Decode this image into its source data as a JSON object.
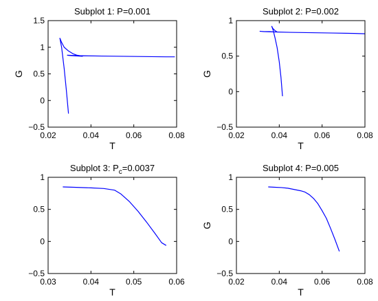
{
  "colors": {
    "line": "#0000ff",
    "axes": "#000000",
    "background": "#ffffff"
  },
  "chart_data": [
    {
      "type": "line",
      "title": {
        "text": "Subplot 1: P=0.001",
        "sub": "",
        "rest": ""
      },
      "xlabel": "T",
      "ylabel": "G",
      "xlim": [
        0.02,
        0.08
      ],
      "ylim": [
        -0.5,
        1.5
      ],
      "xticks": [
        0.02,
        0.04,
        0.06,
        0.08
      ],
      "xtick_labels": [
        "0.02",
        "0.04",
        "0.06",
        "0.08"
      ],
      "yticks": [
        -0.5,
        0,
        0.5,
        1,
        1.5
      ],
      "ytick_labels": [
        "−0.5",
        "0",
        "0.5",
        "1",
        "1.5"
      ],
      "grid": false,
      "series": [
        {
          "x": [
            0.0295,
            0.0285,
            0.0275,
            0.0263,
            0.0255,
            0.0262,
            0.0275,
            0.0295,
            0.0315,
            0.0335,
            0.035,
            0.036,
            0.034,
            0.032,
            0.03,
            0.029,
            0.032,
            0.036,
            0.045,
            0.055,
            0.065,
            0.075,
            0.079
          ],
          "y": [
            -0.24,
            0.2,
            0.6,
            1.0,
            1.17,
            1.1,
            1.0,
            0.93,
            0.88,
            0.85,
            0.84,
            0.83,
            0.835,
            0.84,
            0.845,
            0.85,
            0.845,
            0.84,
            0.835,
            0.83,
            0.825,
            0.82,
            0.82
          ]
        }
      ]
    },
    {
      "type": "line",
      "title": {
        "text": "Subplot 2: P=0.002",
        "sub": "",
        "rest": ""
      },
      "xlabel": "T",
      "ylabel": "G",
      "xlim": [
        0.02,
        0.08
      ],
      "ylim": [
        -0.5,
        1
      ],
      "xticks": [
        0.02,
        0.04,
        0.06,
        0.08
      ],
      "xtick_labels": [
        "0.02",
        "0.04",
        "0.06",
        "0.08"
      ],
      "yticks": [
        -0.5,
        0,
        0.5,
        1
      ],
      "ytick_labels": [
        "−0.5",
        "0",
        "0.5",
        "1"
      ],
      "grid": false,
      "series": [
        {
          "x": [
            0.0415,
            0.0408,
            0.04,
            0.039,
            0.038,
            0.0372,
            0.0365,
            0.037,
            0.038,
            0.039,
            0.0375,
            0.0355,
            0.033,
            0.031,
            0.033,
            0.038,
            0.045,
            0.055,
            0.065,
            0.075,
            0.08
          ],
          "y": [
            -0.06,
            0.2,
            0.42,
            0.62,
            0.76,
            0.86,
            0.92,
            0.89,
            0.86,
            0.84,
            0.84,
            0.845,
            0.845,
            0.85,
            0.845,
            0.84,
            0.835,
            0.83,
            0.825,
            0.82,
            0.815
          ]
        }
      ]
    },
    {
      "type": "line",
      "title": {
        "text": "Subplot 3: P",
        "sub": "c",
        "rest": "=0.0037"
      },
      "xlabel": "T",
      "ylabel": "",
      "xlim": [
        0.03,
        0.06
      ],
      "ylim": [
        -0.5,
        1
      ],
      "xticks": [
        0.03,
        0.04,
        0.05,
        0.06
      ],
      "xtick_labels": [
        "0.03",
        "0.04",
        "0.05",
        "0.06"
      ],
      "yticks": [
        -0.5,
        0,
        0.5,
        1
      ],
      "ytick_labels": [
        "−0.5",
        "0",
        "0.5",
        "1"
      ],
      "grid": false,
      "series": [
        {
          "x": [
            0.0335,
            0.036,
            0.04,
            0.043,
            0.0455,
            0.047,
            0.049,
            0.051,
            0.053,
            0.055,
            0.0565,
            0.0575
          ],
          "y": [
            0.85,
            0.845,
            0.835,
            0.825,
            0.8,
            0.74,
            0.62,
            0.47,
            0.3,
            0.12,
            -0.02,
            -0.06
          ]
        }
      ]
    },
    {
      "type": "line",
      "title": {
        "text": "Subplot 4: P=0.005",
        "sub": "",
        "rest": ""
      },
      "xlabel": "T",
      "ylabel": "G",
      "xlim": [
        0.02,
        0.08
      ],
      "ylim": [
        -0.5,
        1
      ],
      "xticks": [
        0.02,
        0.04,
        0.06,
        0.08
      ],
      "xtick_labels": [
        "0.02",
        "0.04",
        "0.06",
        "0.08"
      ],
      "yticks": [
        -0.5,
        0,
        0.5,
        1
      ],
      "ytick_labels": [
        "−0.5",
        "0",
        "0.5",
        "1"
      ],
      "grid": false,
      "series": [
        {
          "x": [
            0.035,
            0.038,
            0.041,
            0.044,
            0.047,
            0.05,
            0.052,
            0.054,
            0.056,
            0.058,
            0.06,
            0.062,
            0.064,
            0.066,
            0.068
          ],
          "y": [
            0.85,
            0.845,
            0.84,
            0.83,
            0.81,
            0.79,
            0.77,
            0.73,
            0.67,
            0.59,
            0.48,
            0.36,
            0.2,
            0.03,
            -0.15
          ]
        }
      ]
    }
  ]
}
